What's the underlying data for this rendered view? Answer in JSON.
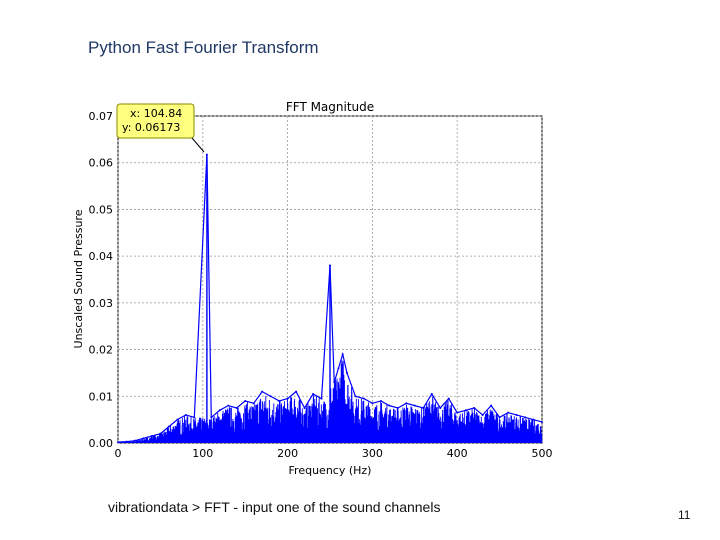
{
  "slide": {
    "title": "Python Fast Fourier Transform",
    "caption": "vibrationdata > FFT   -   input one of the sound channels",
    "page_number": "11"
  },
  "chart_data": {
    "type": "line",
    "title": "FFT Magnitude",
    "xlabel": "Frequency (Hz)",
    "ylabel": "Unscaled Sound Pressure",
    "xlim": [
      0,
      500
    ],
    "ylim": [
      0,
      0.07
    ],
    "x_ticks": [
      "0",
      "100",
      "200",
      "300",
      "400",
      "500"
    ],
    "y_ticks": [
      "0.00",
      "0.01",
      "0.02",
      "0.03",
      "0.04",
      "0.05",
      "0.06",
      "0.07"
    ],
    "grid": true,
    "color": "#0000ff",
    "series": [
      {
        "x": [
          0,
          10,
          20,
          30,
          40,
          50,
          60,
          70,
          80,
          90,
          104.84,
          110,
          120,
          130,
          140,
          150,
          160,
          170,
          180,
          190,
          200,
          210,
          220,
          230,
          240,
          250,
          255,
          260,
          265,
          270,
          280,
          290,
          300,
          310,
          320,
          330,
          340,
          350,
          360,
          370,
          380,
          390,
          400,
          410,
          420,
          430,
          440,
          450,
          460,
          470,
          480,
          490,
          500
        ],
        "y": [
          0.0002,
          0.0003,
          0.0005,
          0.001,
          0.0015,
          0.002,
          0.0035,
          0.005,
          0.006,
          0.0055,
          0.06173,
          0.0055,
          0.007,
          0.008,
          0.0075,
          0.009,
          0.0085,
          0.011,
          0.01,
          0.009,
          0.0095,
          0.011,
          0.0075,
          0.0105,
          0.0095,
          0.038,
          0.013,
          0.016,
          0.019,
          0.015,
          0.01,
          0.0095,
          0.0085,
          0.009,
          0.008,
          0.0075,
          0.0085,
          0.008,
          0.0075,
          0.0105,
          0.0075,
          0.0095,
          0.0065,
          0.007,
          0.0075,
          0.006,
          0.008,
          0.0055,
          0.0065,
          0.006,
          0.0055,
          0.005,
          0.0045
        ]
      }
    ],
    "annotation": {
      "x": "x: 104.84",
      "y": "y:  0.06173"
    }
  }
}
